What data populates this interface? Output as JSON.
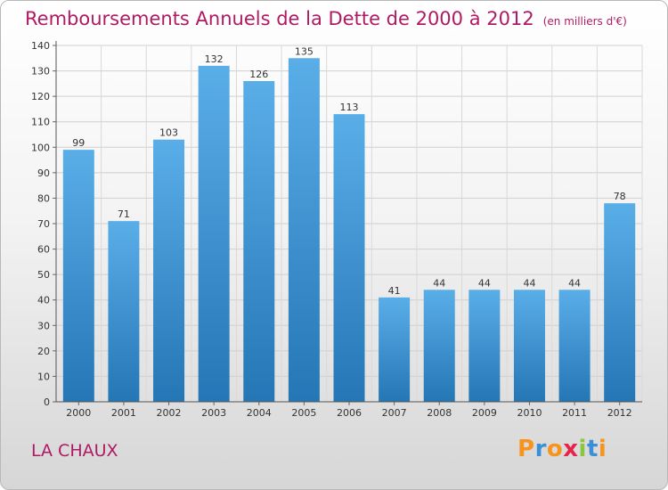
{
  "title": "Remboursements Annuels de la Dette de 2000 à 2012",
  "subtitle": "(en milliers d'€)",
  "commune": "LA CHAUX",
  "brand": "Proxiti",
  "colors": {
    "title": "#b01a63",
    "bar_top": "#5aaee8",
    "bar_bottom": "#2476b5",
    "brand_letters": [
      "#f7941d",
      "#3a8fd6",
      "#f7941d",
      "#e8234a",
      "#8cc63f",
      "#3a8fd6",
      "#f7941d"
    ]
  },
  "chart_data": {
    "type": "bar",
    "categories": [
      "2000",
      "2001",
      "2002",
      "2003",
      "2004",
      "2005",
      "2006",
      "2007",
      "2008",
      "2009",
      "2010",
      "2011",
      "2012"
    ],
    "values": [
      99,
      71,
      103,
      132,
      126,
      135,
      113,
      41,
      44,
      44,
      44,
      44,
      78
    ],
    "ylim": [
      0,
      140
    ],
    "yticks": [
      0,
      10,
      20,
      30,
      40,
      50,
      60,
      70,
      80,
      90,
      100,
      110,
      120,
      130,
      140
    ],
    "grid": true,
    "legend": "none",
    "data_labels": true
  }
}
